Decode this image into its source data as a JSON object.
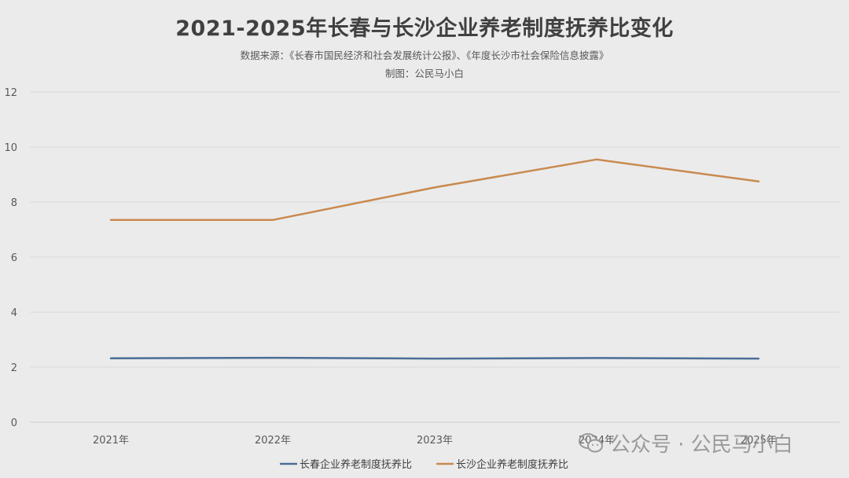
{
  "chart_data": {
    "type": "line",
    "title": "2021-2025年长春与长沙企业养老制度抚养比变化",
    "subtitle_lines": [
      "数据来源：《长春市国民经济和社会发展统计公报》、《年度长沙市社会保险信息披露》",
      "制图：公民马小白"
    ],
    "categories": [
      "2021年",
      "2022年",
      "2023年",
      "2024年",
      "2025年"
    ],
    "y_ticks": [
      "0",
      "2",
      "4",
      "6",
      "8",
      "10",
      "12"
    ],
    "ylim": [
      0,
      12
    ],
    "grid": true,
    "legend_position": "bottom",
    "series": [
      {
        "name": "长春企业养老制度抚养比",
        "color": "#4a6e96",
        "values": [
          2.32,
          2.34,
          2.31,
          2.33,
          2.31
        ]
      },
      {
        "name": "长沙企业养老制度抚养比",
        "color": "#c98a50",
        "values": [
          7.35,
          7.35,
          8.53,
          9.55,
          8.75
        ]
      }
    ]
  },
  "watermark": {
    "text": "公众号 · 公民马小白",
    "icon": "wechat-icon"
  }
}
